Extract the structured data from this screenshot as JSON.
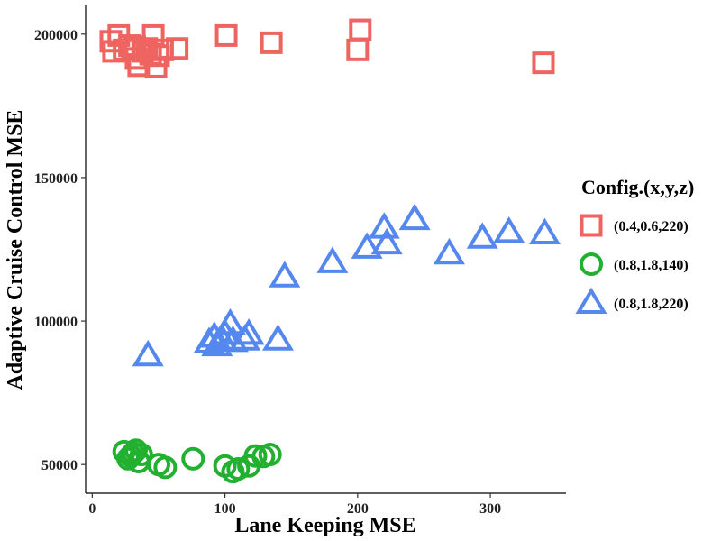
{
  "chart_data": {
    "type": "scatter",
    "title": "",
    "xlabel": "Lane Keeping MSE",
    "ylabel": "Adaptive Cruise Control MSE",
    "xlim": [
      -5,
      357
    ],
    "ylim": [
      40000,
      210000
    ],
    "x_ticks": [
      {
        "value": 0,
        "label": "0"
      },
      {
        "value": 100,
        "label": "100"
      },
      {
        "value": 200,
        "label": "200"
      },
      {
        "value": 300,
        "label": "300"
      }
    ],
    "y_ticks": [
      {
        "value": 50000,
        "label": "50000"
      },
      {
        "value": 100000,
        "label": "100000"
      },
      {
        "value": 150000,
        "label": "150000"
      },
      {
        "value": 200000,
        "label": "200000"
      }
    ],
    "grid": false,
    "legend": {
      "title": "Config.(x,y,z)",
      "position": "right"
    },
    "series": [
      {
        "name": "(0.4,0.6,220)",
        "shape": "square",
        "color": "#EE6460",
        "points": [
          [
            14,
            197500
          ],
          [
            16,
            194000
          ],
          [
            20,
            199500
          ],
          [
            24,
            194500
          ],
          [
            28,
            196000
          ],
          [
            32,
            195500
          ],
          [
            33,
            191500
          ],
          [
            35,
            189000
          ],
          [
            38,
            194000
          ],
          [
            41,
            195000
          ],
          [
            44,
            193000
          ],
          [
            46,
            199500
          ],
          [
            48,
            188500
          ],
          [
            50,
            192500
          ],
          [
            53,
            194500
          ],
          [
            64,
            195000
          ],
          [
            101,
            199500
          ],
          [
            135,
            197000
          ],
          [
            200,
            194500
          ],
          [
            202,
            201500
          ],
          [
            340,
            190000
          ]
        ]
      },
      {
        "name": "(0.8,1.8,140)",
        "shape": "circle",
        "color": "#22B030",
        "points": [
          [
            24,
            54500
          ],
          [
            27,
            52000
          ],
          [
            29,
            53000
          ],
          [
            31,
            54000
          ],
          [
            33,
            55000
          ],
          [
            35,
            51000
          ],
          [
            37,
            53500
          ],
          [
            50,
            50000
          ],
          [
            55,
            49000
          ],
          [
            76,
            52000
          ],
          [
            100,
            49500
          ],
          [
            106,
            47500
          ],
          [
            110,
            48500
          ],
          [
            118,
            49500
          ],
          [
            123,
            53000
          ],
          [
            129,
            52800
          ],
          [
            134,
            53500
          ]
        ]
      },
      {
        "name": "(0.8,1.8,220)",
        "shape": "triangle",
        "color": "#5588EE",
        "points": [
          [
            42,
            88000
          ],
          [
            88,
            92500
          ],
          [
            92,
            94500
          ],
          [
            94,
            91500
          ],
          [
            98,
            93500
          ],
          [
            100,
            95500
          ],
          [
            104,
            99000
          ],
          [
            106,
            93000
          ],
          [
            115,
            93500
          ],
          [
            118,
            95500
          ],
          [
            140,
            93500
          ],
          [
            145,
            115500
          ],
          [
            181,
            120500
          ],
          [
            207,
            125500
          ],
          [
            220,
            132500
          ],
          [
            222,
            127000
          ],
          [
            243,
            135500
          ],
          [
            269,
            123500
          ],
          [
            294,
            129000
          ],
          [
            314,
            131000
          ],
          [
            341,
            130500
          ]
        ]
      }
    ]
  }
}
